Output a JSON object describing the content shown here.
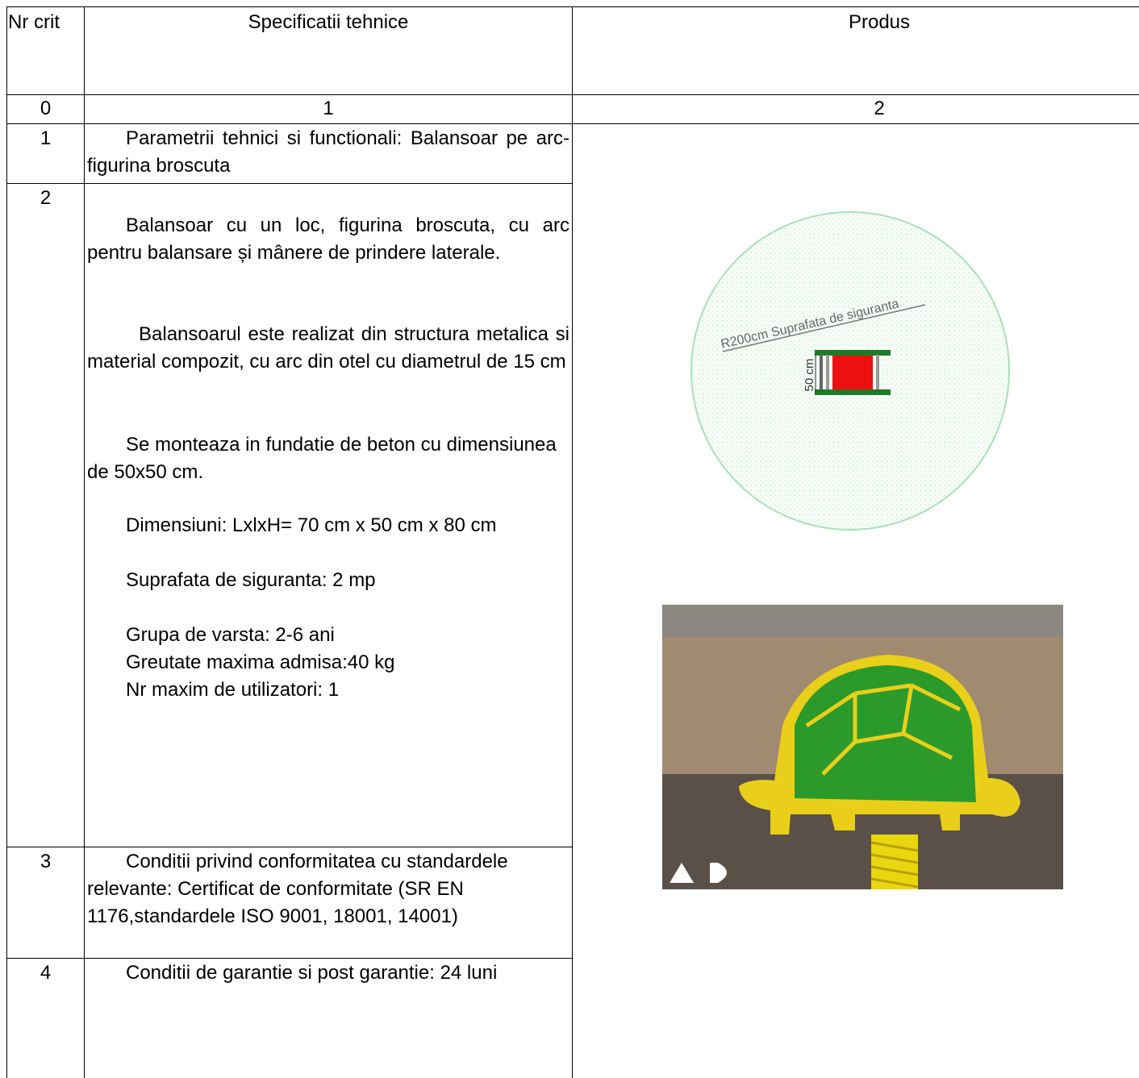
{
  "table": {
    "header": [
      "Nr crit",
      "Specificatii tehnice",
      "Produs"
    ],
    "index_row": [
      "0",
      "1",
      "2"
    ],
    "rows": [
      {
        "nr": "1",
        "paragraphs": [
          "Parametrii tehnici si functionali: Balansoar pe arc-figurina broscuta"
        ]
      },
      {
        "nr": "2",
        "paragraphs": [
          "Balansoar cu un loc, figurina broscuta, cu arc pentru balansare și mânere de prindere laterale.",
          "Balansoarul este realizat din structura metalica si material compozit, cu arc din otel cu diametrul de 15 cm",
          "Se monteaza in fundatie de beton cu dimensiunea de 50x50 cm.",
          "Dimensiuni: LxlxH= 70 cm x 50 cm x 80 cm",
          "Suprafata de siguranta: 2 mp",
          "Grupa de varsta: 2-6 ani",
          "Greutate maxima admisa:40 kg",
          "Nr maxim de utilizatori: 1"
        ]
      },
      {
        "nr": "3",
        "paragraphs": [
          "Conditii privind conformitatea cu standardele relevante: Certificat de conformitate (SR EN 1176,standardele ISO 9001, 18001, 14001)"
        ]
      },
      {
        "nr": "4",
        "paragraphs": [
          "Conditii de garantie si post garantie: 24 luni"
        ]
      }
    ]
  },
  "diagram": {
    "radius_label": "R200cm Suprafata de siguranta",
    "size_label": "50 cm"
  }
}
